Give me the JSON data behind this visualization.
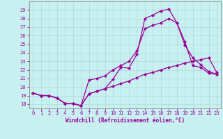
{
  "title": "",
  "xlabel": "Windchill (Refroidissement éolien,°C)",
  "ylabel": "",
  "bg_color": "#c8f0f0",
  "line_color": "#990099",
  "grid_color": "#b0d8d8",
  "ylim": [
    17.5,
    30.0
  ],
  "xlim": [
    -0.5,
    23.5
  ],
  "yticks": [
    18,
    19,
    20,
    21,
    22,
    23,
    24,
    25,
    26,
    27,
    28,
    29
  ],
  "xticks": [
    0,
    1,
    2,
    3,
    4,
    5,
    6,
    7,
    8,
    9,
    10,
    11,
    12,
    13,
    14,
    15,
    16,
    17,
    18,
    19,
    20,
    21,
    22,
    23
  ],
  "line1_x": [
    0,
    1,
    2,
    3,
    4,
    5,
    6,
    7,
    8,
    9,
    10,
    11,
    12,
    13,
    14,
    15,
    16,
    17,
    18,
    19,
    20,
    21,
    22,
    23
  ],
  "line1_y": [
    19.3,
    19.0,
    19.0,
    18.7,
    18.1,
    18.1,
    17.8,
    19.2,
    19.5,
    19.8,
    20.9,
    22.3,
    22.2,
    23.8,
    28.0,
    28.4,
    28.9,
    29.1,
    27.5,
    25.3,
    22.5,
    22.3,
    21.6,
    21.5
  ],
  "line2_x": [
    0,
    1,
    2,
    3,
    4,
    5,
    6,
    7,
    8,
    9,
    10,
    11,
    12,
    13,
    14,
    15,
    16,
    17,
    18,
    19,
    20,
    21,
    22,
    23
  ],
  "line2_y": [
    19.3,
    19.0,
    19.0,
    18.7,
    18.1,
    18.1,
    17.8,
    19.2,
    19.5,
    19.8,
    20.1,
    20.4,
    20.7,
    21.1,
    21.5,
    21.7,
    22.0,
    22.3,
    22.5,
    22.8,
    23.0,
    23.2,
    23.4,
    21.7
  ],
  "line3_x": [
    0,
    1,
    2,
    3,
    4,
    5,
    6,
    7,
    8,
    9,
    10,
    11,
    12,
    13,
    14,
    15,
    16,
    17,
    18,
    19,
    20,
    21,
    22,
    23
  ],
  "line3_y": [
    19.3,
    19.0,
    19.0,
    18.7,
    18.1,
    18.1,
    17.8,
    20.8,
    21.0,
    21.3,
    22.0,
    22.5,
    23.0,
    24.2,
    26.8,
    27.2,
    27.5,
    28.0,
    27.5,
    24.9,
    23.4,
    22.6,
    21.8,
    21.5
  ],
  "marker": "D",
  "markersize": 2.5,
  "linewidth": 0.9
}
